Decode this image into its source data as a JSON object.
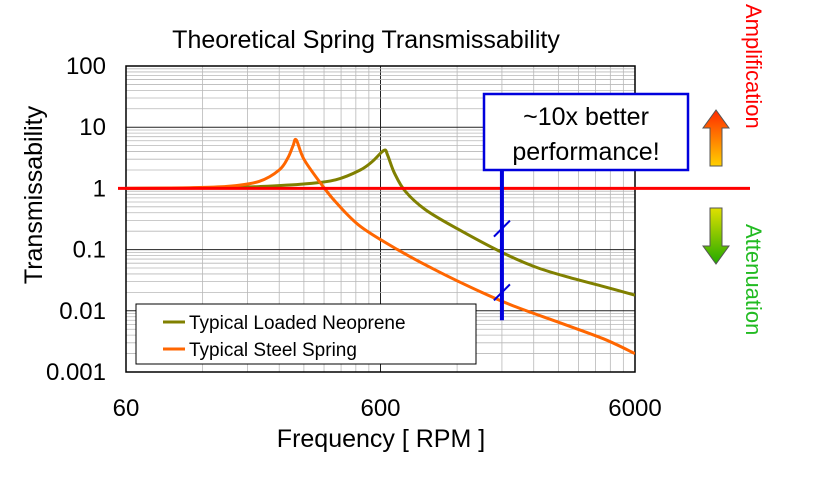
{
  "chart_data": {
    "type": "line",
    "title": "Theoretical Spring Transmissability",
    "xlabel": "Frequency [ RPM ]",
    "ylabel": "Transmissability",
    "xscale": "log",
    "yscale": "log",
    "xlim": [
      60,
      6000
    ],
    "ylim": [
      0.001,
      100
    ],
    "x_ticks": [
      "60",
      "600",
      "6000"
    ],
    "y_ticks": [
      "0.001",
      "0.01",
      "0.1",
      "1",
      "10",
      "100"
    ],
    "grid": true,
    "legend_position": "bottom-left",
    "series": [
      {
        "name": "Typical Loaded Neoprene",
        "color": "#808000",
        "x": [
          60,
          100,
          150,
          200,
          300,
          400,
          500,
          560,
          620,
          640,
          680,
          750,
          900,
          1200,
          1800,
          2500,
          3500,
          4500,
          6000
        ],
        "y": [
          1.0,
          1.01,
          1.04,
          1.07,
          1.18,
          1.38,
          2.0,
          2.8,
          4.2,
          3.5,
          1.8,
          0.9,
          0.45,
          0.22,
          0.09,
          0.05,
          0.033,
          0.025,
          0.018
        ]
      },
      {
        "name": "Typical Steel Spring",
        "color": "#ff6600",
        "x": [
          60,
          100,
          150,
          200,
          240,
          260,
          272,
          280,
          300,
          350,
          400,
          500,
          700,
          1000,
          1500,
          2000,
          3000,
          4500,
          6000
        ],
        "y": [
          1.0,
          1.02,
          1.08,
          1.3,
          2.0,
          3.2,
          5.0,
          6.2,
          3.0,
          1.2,
          0.6,
          0.24,
          0.1,
          0.045,
          0.02,
          0.012,
          0.0065,
          0.0035,
          0.002
        ]
      }
    ],
    "reference_line": {
      "y": 1,
      "color": "#ff0000"
    },
    "marker_line": {
      "x": 1800,
      "y_from": 0.007,
      "y_to": 2,
      "color": "#0000dd",
      "marks_y": [
        0.22,
        0.02
      ]
    },
    "annotation": "~10x better performance!",
    "annotation_lines": [
      "~10x better",
      "performance!"
    ],
    "side_labels": [
      {
        "text": "Amplification",
        "color": "#ff0000"
      },
      {
        "text": "Attenuation",
        "color": "#22bb22"
      }
    ]
  }
}
